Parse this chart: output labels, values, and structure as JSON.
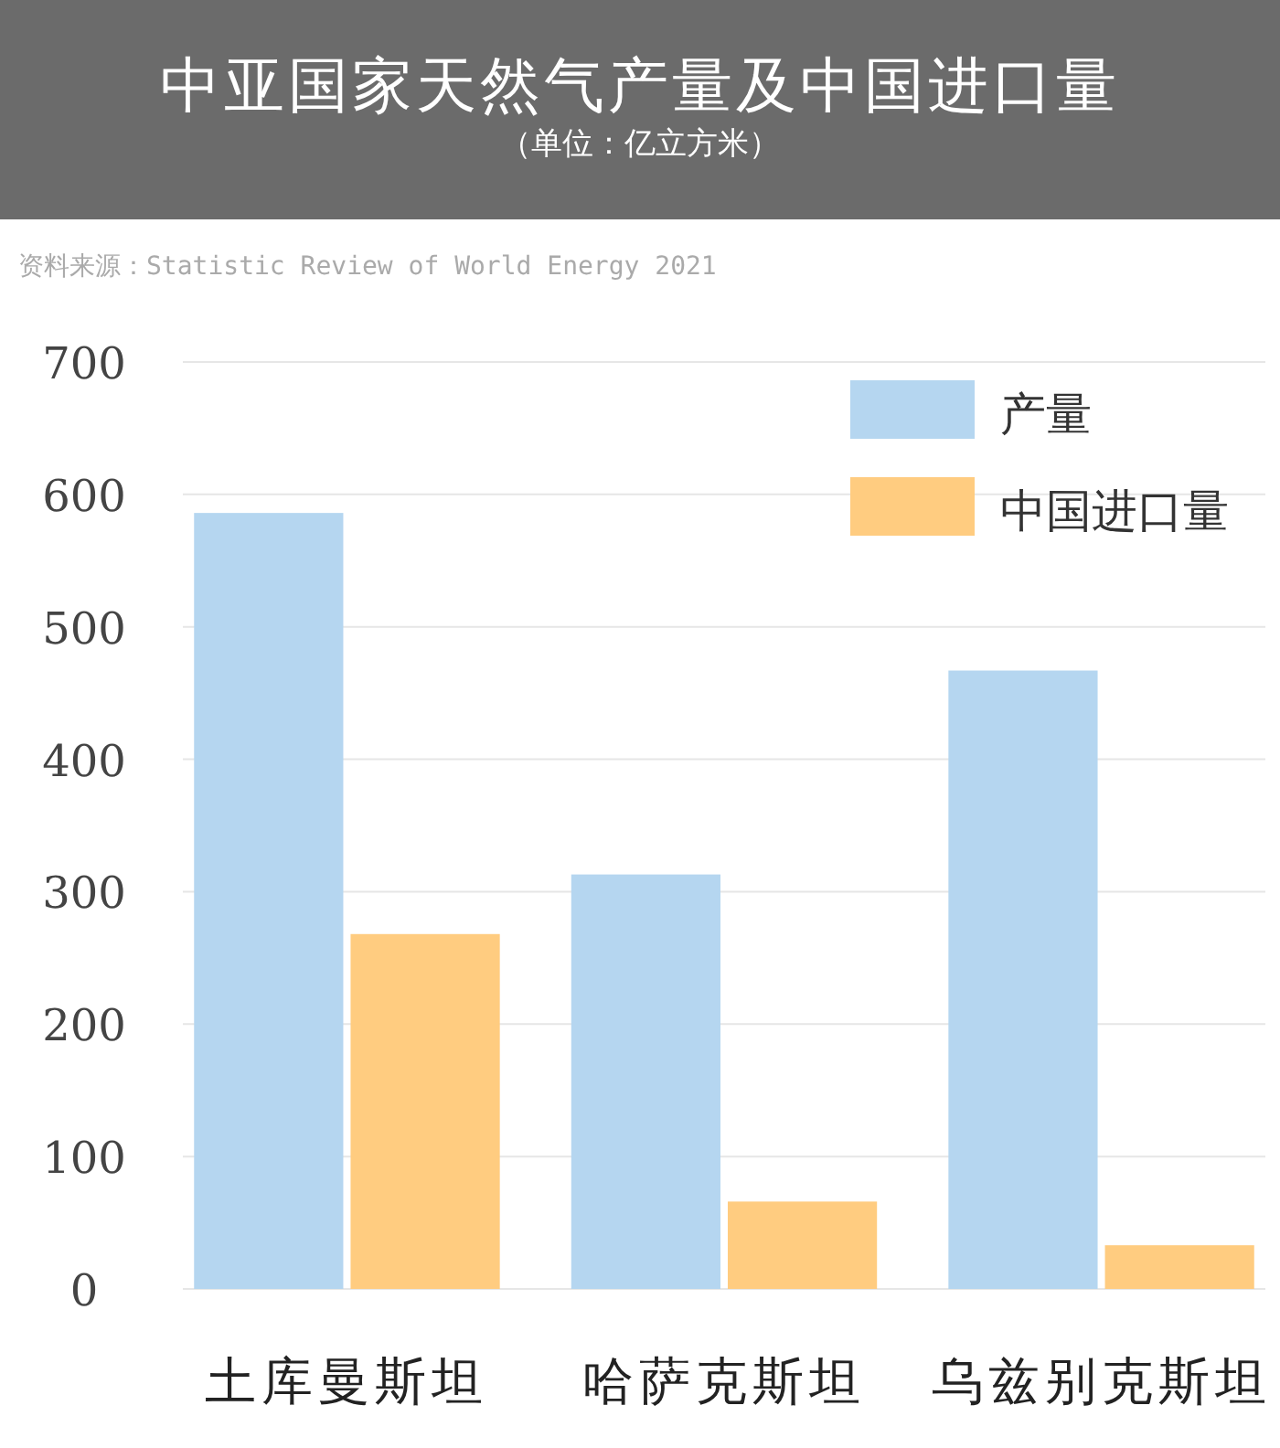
{
  "chart_data": {
    "type": "bar",
    "title": "中亚国家天然气产量及中国进口量",
    "subtitle": "（单位：亿立方米）",
    "annotations": [
      "资料来源：Statistic Review of World Energy 2021"
    ],
    "categories": [
      "土库曼斯坦",
      "哈萨克斯坦",
      "乌兹别克斯坦"
    ],
    "series": [
      {
        "name": "产量",
        "color": "#b5d6f0",
        "values": [
          586,
          313,
          467
        ]
      },
      {
        "name": "中国进口量",
        "color": "#ffcc80",
        "values": [
          268,
          66,
          33
        ]
      }
    ],
    "ylim": [
      0,
      700
    ],
    "yticks": [
      0,
      100,
      200,
      300,
      400,
      500,
      600,
      700
    ],
    "grid": "y",
    "legend": "top right"
  }
}
